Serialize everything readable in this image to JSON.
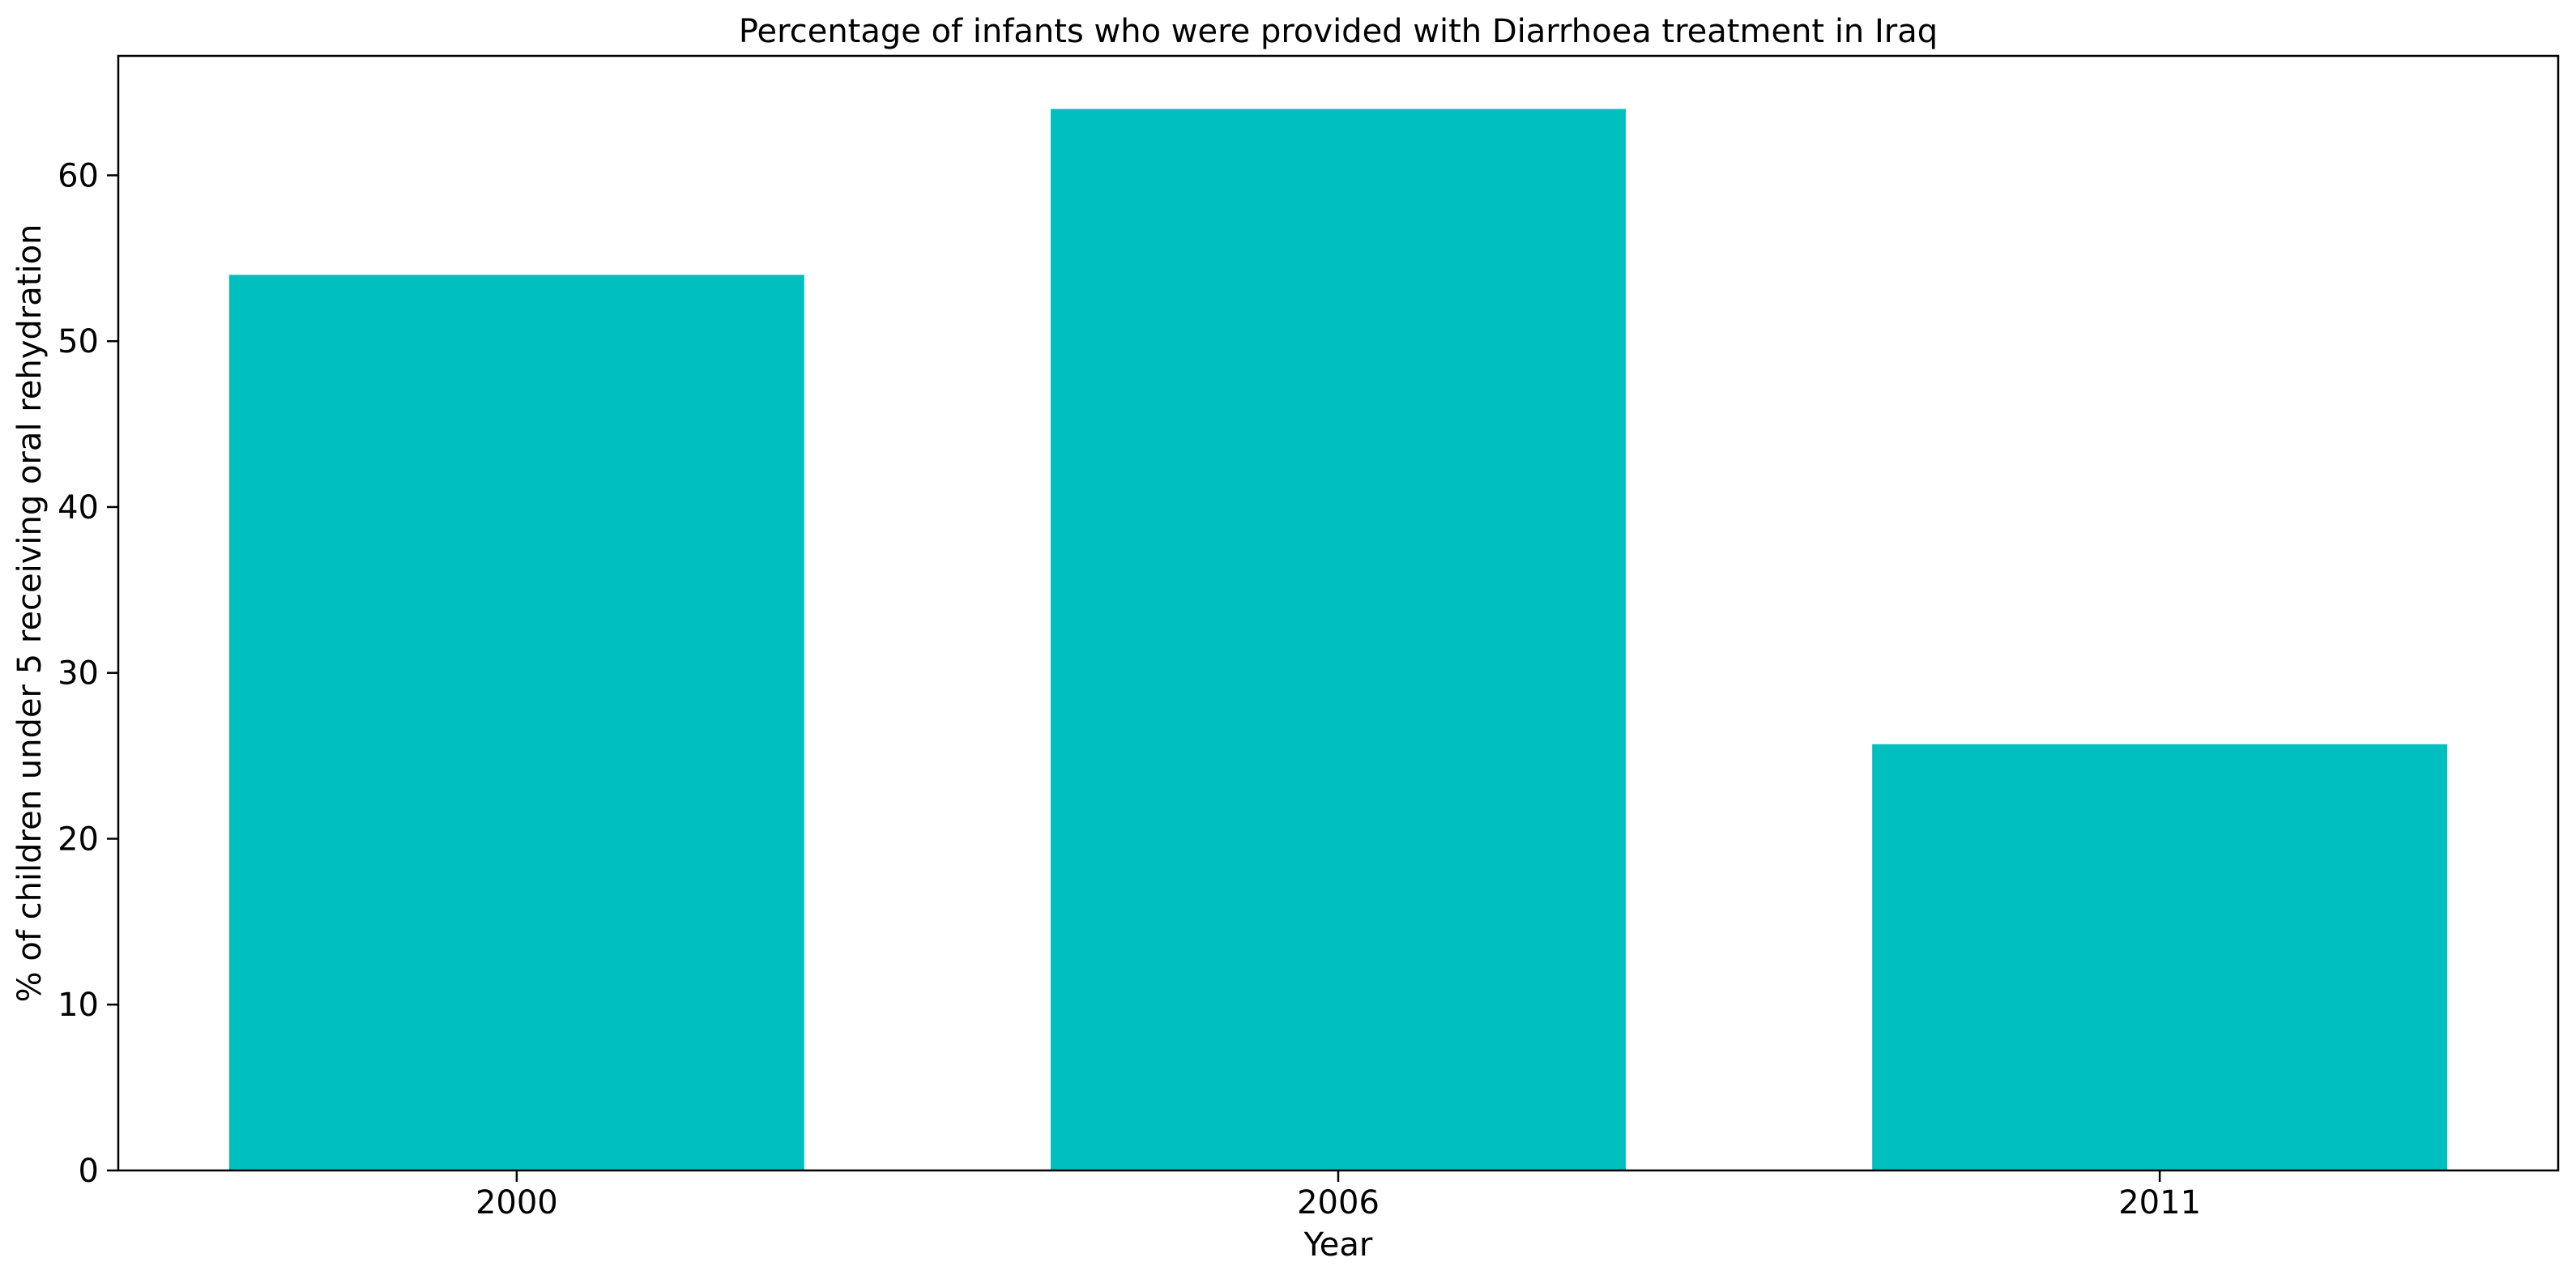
{
  "chart_data": {
    "type": "bar",
    "title": "Percentage of infants who were provided with Diarrhoea treatment in Iraq",
    "xlabel": "Year",
    "ylabel": "% of children under 5 receiving oral rehydration",
    "categories": [
      "2000",
      "2006",
      "2011"
    ],
    "values": [
      54,
      64,
      25.7
    ],
    "ylim": [
      0,
      67.2
    ],
    "yticks": [
      0,
      10,
      20,
      30,
      40,
      50,
      60
    ],
    "grid": false,
    "legend": "none",
    "bar_color": "#00bfbf"
  }
}
